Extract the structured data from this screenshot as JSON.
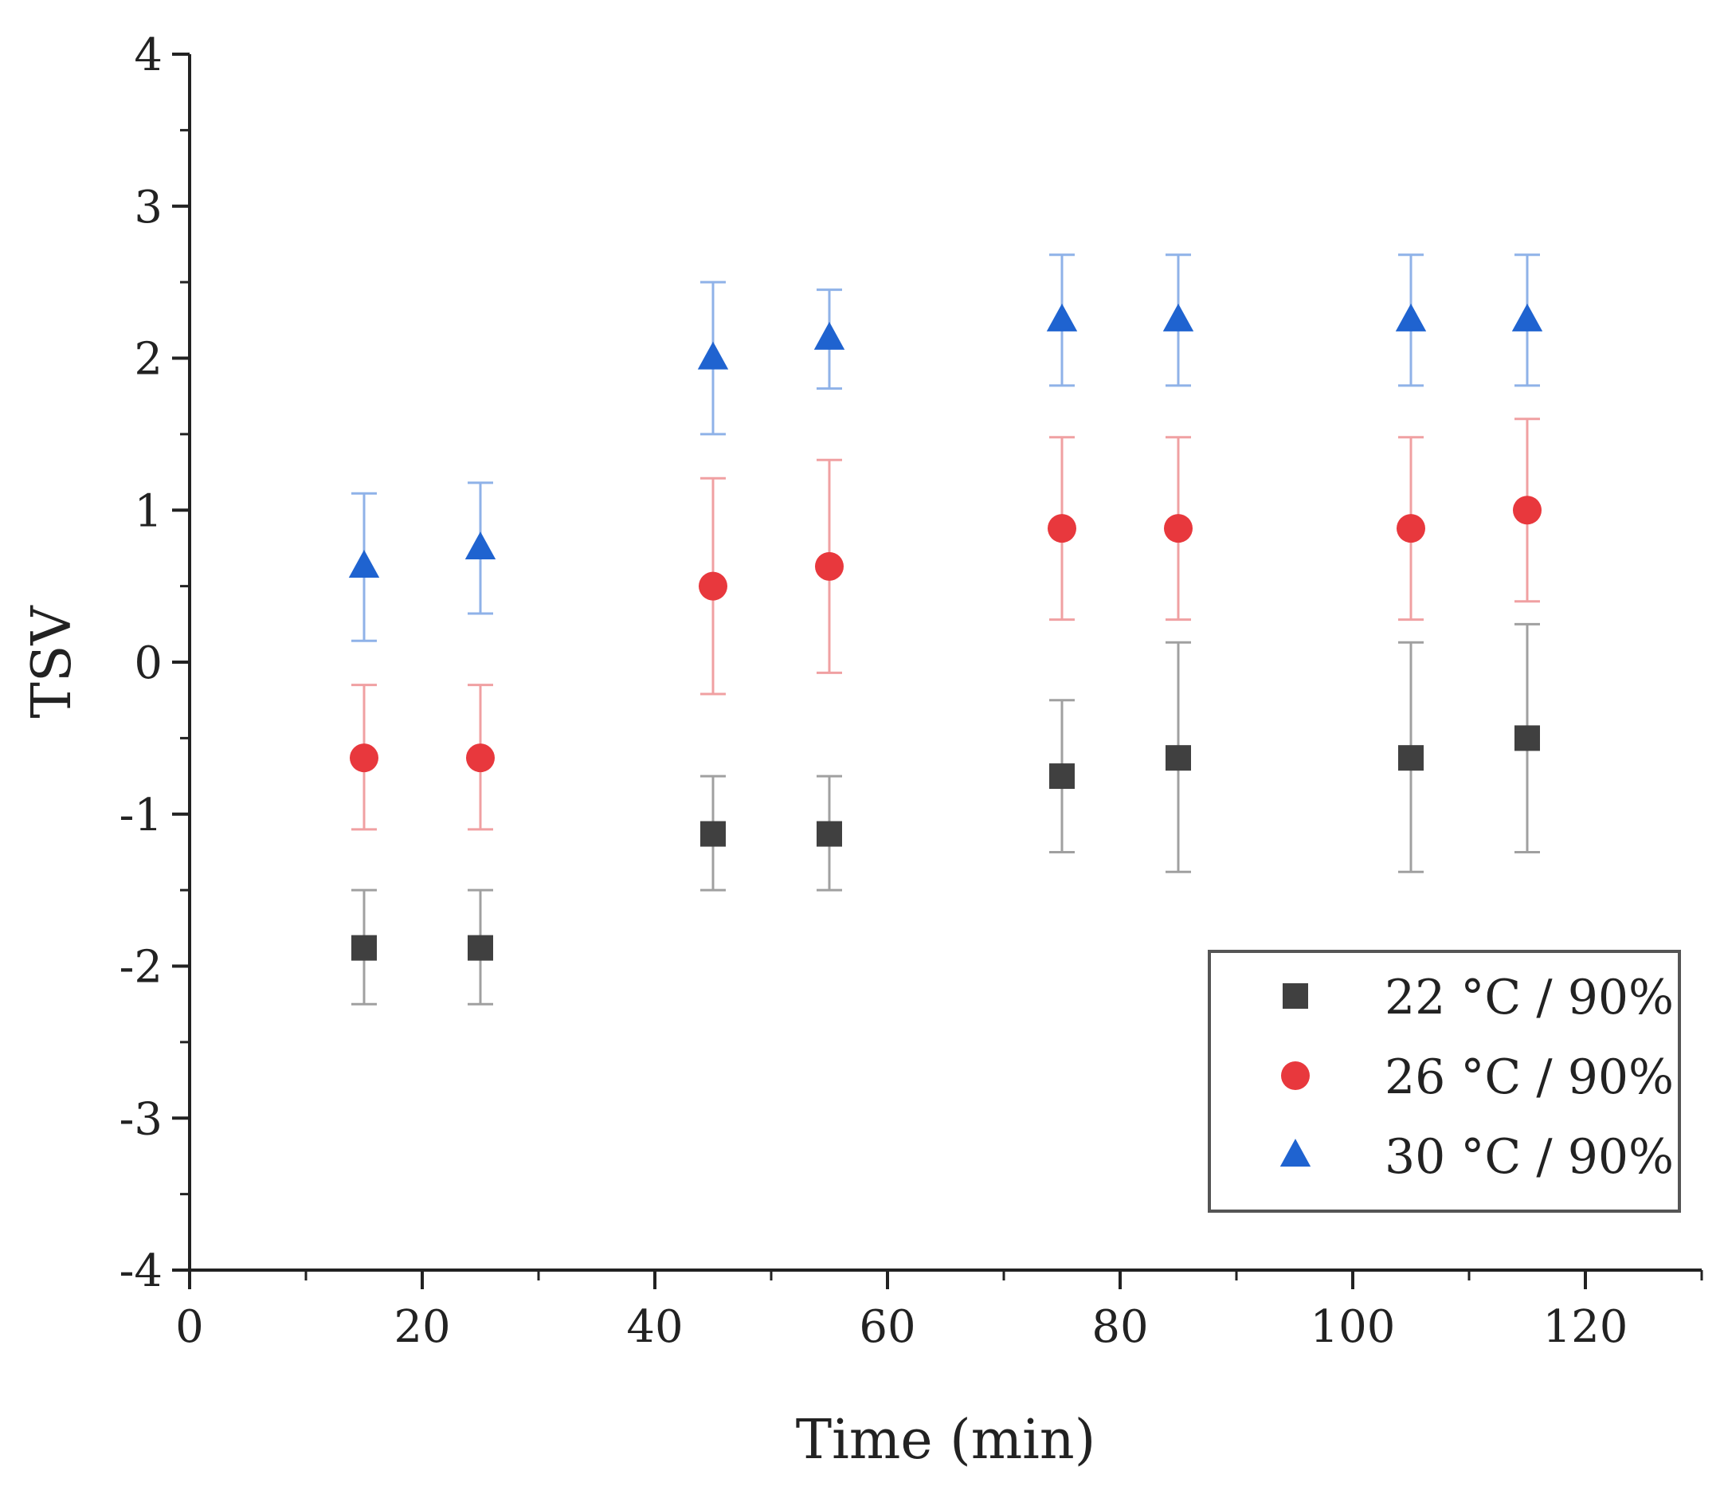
{
  "chart_data": {
    "type": "scatter",
    "title": "",
    "xlabel": "Time (min)",
    "ylabel": "TSV",
    "xlim": [
      0,
      130
    ],
    "ylim": [
      -4,
      4
    ],
    "xticks": [
      0,
      20,
      40,
      60,
      80,
      100,
      120
    ],
    "yticks": [
      -4,
      -3,
      -2,
      -1,
      0,
      1,
      2,
      3,
      4
    ],
    "grid": false,
    "legend_position": "bottom-right",
    "series": [
      {
        "name": "22 °C / 90%",
        "marker": "square",
        "color": "#404040",
        "error_bar_color": "#a0a0a0",
        "points": [
          {
            "x": 15,
            "y": -1.88,
            "err_low": -2.25,
            "err_high": -1.5
          },
          {
            "x": 25,
            "y": -1.88,
            "err_low": -2.25,
            "err_high": -1.5
          },
          {
            "x": 45,
            "y": -1.13,
            "err_low": -1.5,
            "err_high": -0.75
          },
          {
            "x": 55,
            "y": -1.13,
            "err_low": -1.5,
            "err_high": -0.75
          },
          {
            "x": 75,
            "y": -0.75,
            "err_low": -1.25,
            "err_high": -0.25
          },
          {
            "x": 85,
            "y": -0.63,
            "err_low": -1.38,
            "err_high": 0.13
          },
          {
            "x": 105,
            "y": -0.63,
            "err_low": -1.38,
            "err_high": 0.13
          },
          {
            "x": 115,
            "y": -0.5,
            "err_low": -1.25,
            "err_high": 0.25
          }
        ]
      },
      {
        "name": "26 °C / 90%",
        "marker": "circle",
        "color": "#e8383d",
        "error_bar_color": "#f0a0a2",
        "points": [
          {
            "x": 15,
            "y": -0.63,
            "err_low": -1.1,
            "err_high": -0.15
          },
          {
            "x": 25,
            "y": -0.63,
            "err_low": -1.1,
            "err_high": -0.15
          },
          {
            "x": 45,
            "y": 0.5,
            "err_low": -0.21,
            "err_high": 1.21
          },
          {
            "x": 55,
            "y": 0.63,
            "err_low": -0.07,
            "err_high": 1.33
          },
          {
            "x": 75,
            "y": 0.88,
            "err_low": 0.28,
            "err_high": 1.48
          },
          {
            "x": 85,
            "y": 0.88,
            "err_low": 0.28,
            "err_high": 1.48
          },
          {
            "x": 105,
            "y": 0.88,
            "err_low": 0.28,
            "err_high": 1.48
          },
          {
            "x": 115,
            "y": 1.0,
            "err_low": 0.4,
            "err_high": 1.6
          }
        ]
      },
      {
        "name": "30 °C / 90%",
        "marker": "triangle",
        "color": "#1f63d0",
        "error_bar_color": "#8fb2e8",
        "points": [
          {
            "x": 15,
            "y": 0.63,
            "err_low": 0.14,
            "err_high": 1.11
          },
          {
            "x": 25,
            "y": 0.75,
            "err_low": 0.32,
            "err_high": 1.18
          },
          {
            "x": 45,
            "y": 2.0,
            "err_low": 1.5,
            "err_high": 2.5
          },
          {
            "x": 55,
            "y": 2.13,
            "err_low": 1.8,
            "err_high": 2.45
          },
          {
            "x": 75,
            "y": 2.25,
            "err_low": 1.82,
            "err_high": 2.68
          },
          {
            "x": 85,
            "y": 2.25,
            "err_low": 1.82,
            "err_high": 2.68
          },
          {
            "x": 105,
            "y": 2.25,
            "err_low": 1.82,
            "err_high": 2.68
          },
          {
            "x": 115,
            "y": 2.25,
            "err_low": 1.82,
            "err_high": 2.68
          }
        ]
      }
    ]
  }
}
